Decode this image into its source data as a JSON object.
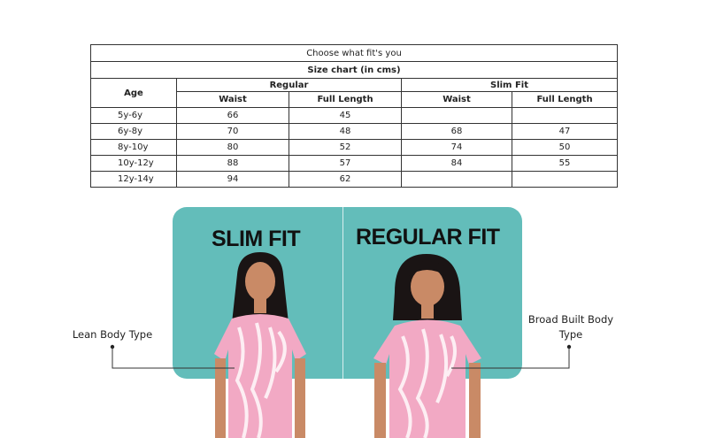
{
  "table": {
    "caption": "Choose what fit's you",
    "title": "Size chart (in cms)",
    "age_header": "Age",
    "groups": [
      "Regular",
      "Slim Fit"
    ],
    "subheaders": [
      "Waist",
      "Full Length",
      "Waist",
      "Full Length"
    ],
    "rows": [
      {
        "age": "5y-6y",
        "reg_waist": "66",
        "reg_length": "45",
        "slim_waist": "",
        "slim_length": ""
      },
      {
        "age": "6y-8y",
        "reg_waist": "70",
        "reg_length": "48",
        "slim_waist": "68",
        "slim_length": "47"
      },
      {
        "age": "8y-10y",
        "reg_waist": "80",
        "reg_length": "52",
        "slim_waist": "74",
        "slim_length": "50"
      },
      {
        "age": "10y-12y",
        "reg_waist": "88",
        "reg_length": "57",
        "slim_waist": "84",
        "slim_length": "55"
      },
      {
        "age": "12y-14y",
        "reg_waist": "94",
        "reg_length": "62",
        "slim_waist": "",
        "slim_length": ""
      }
    ]
  },
  "fits": {
    "slim_title": "SLIM FIT",
    "regular_title": "REGULAR FIT",
    "slim_label": "Lean Body Type",
    "regular_label_line1": "Broad Built Body",
    "regular_label_line2": "Type"
  },
  "colors": {
    "panel": "#63bdba",
    "shirt": "#f2a9c4",
    "hair": "#1a1414",
    "skin": "#c98a66"
  }
}
